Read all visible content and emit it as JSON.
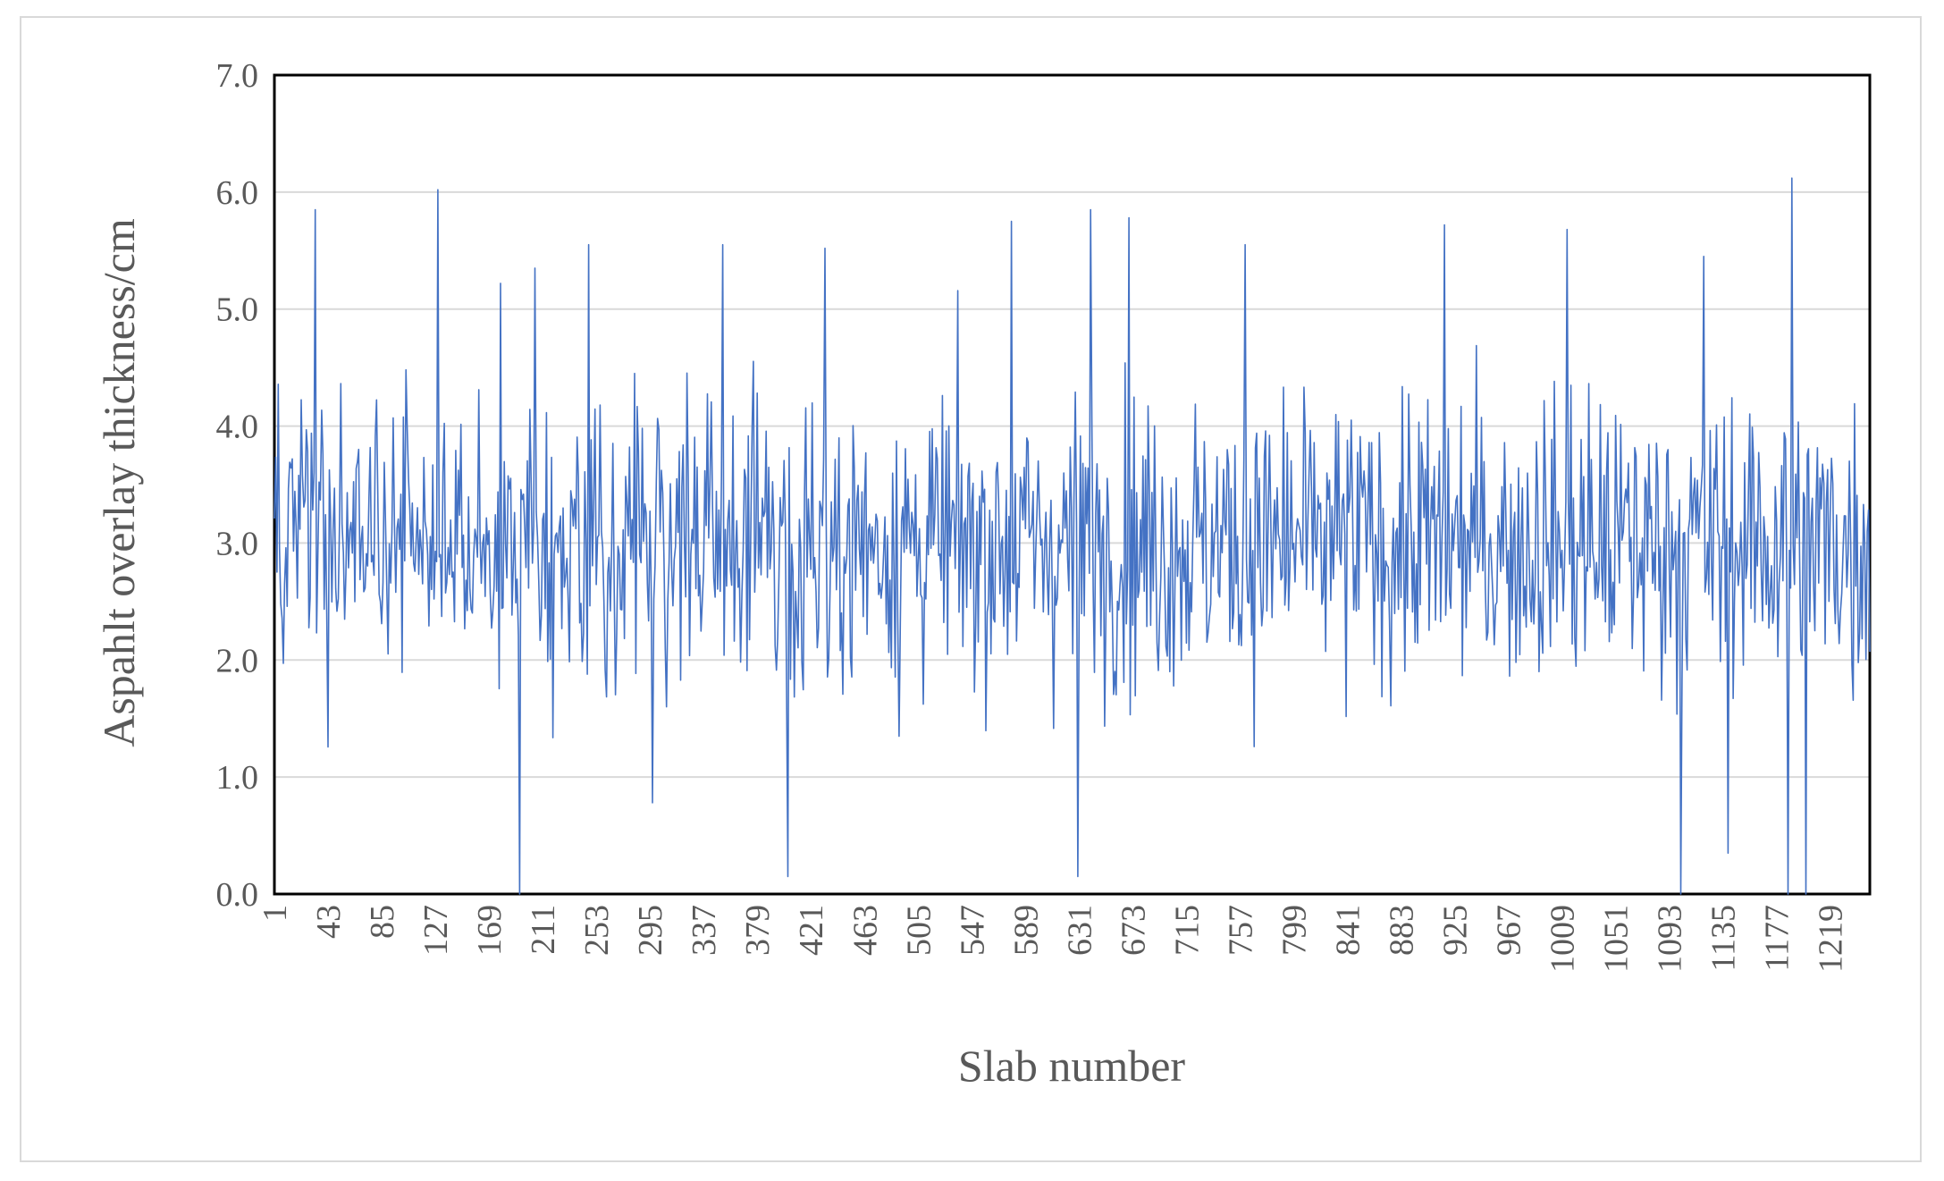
{
  "chart_data": {
    "type": "line",
    "title": "",
    "xlabel": "Slab number",
    "ylabel": "Aspahlt overlay thickness/cm",
    "ylim": [
      0,
      7
    ],
    "xlim": [
      1,
      1250
    ],
    "yticks": [
      "0.0",
      "1.0",
      "2.0",
      "3.0",
      "4.0",
      "5.0",
      "6.0",
      "7.0"
    ],
    "xticks": [
      "1",
      "43",
      "85",
      "127",
      "169",
      "211",
      "253",
      "295",
      "337",
      "379",
      "421",
      "463",
      "505",
      "547",
      "589",
      "631",
      "673",
      "715",
      "757",
      "799",
      "841",
      "883",
      "925",
      "967",
      "1009",
      "1051",
      "1093",
      "1135",
      "1177",
      "1219"
    ],
    "grid": true,
    "legend": "none",
    "series": [
      {
        "name": "Asphalt overlay thickness",
        "color": "#4472c4",
        "count": 1250,
        "mean": 3.0,
        "peaks": [
          {
            "x": 33,
            "y": 5.85
          },
          {
            "x": 129,
            "y": 6.02
          },
          {
            "x": 178,
            "y": 5.22
          },
          {
            "x": 193,
            "y": 0.0
          },
          {
            "x": 205,
            "y": 5.35
          },
          {
            "x": 247,
            "y": 5.55
          },
          {
            "x": 297,
            "y": 0.78
          },
          {
            "x": 352,
            "y": 5.55
          },
          {
            "x": 403,
            "y": 0.15
          },
          {
            "x": 432,
            "y": 5.52
          },
          {
            "x": 578,
            "y": 5.75
          },
          {
            "x": 630,
            "y": 0.15
          },
          {
            "x": 640,
            "y": 5.85
          },
          {
            "x": 670,
            "y": 5.78
          },
          {
            "x": 761,
            "y": 5.55
          },
          {
            "x": 917,
            "y": 5.72
          },
          {
            "x": 1013,
            "y": 5.68
          },
          {
            "x": 1102,
            "y": 0.0
          },
          {
            "x": 1120,
            "y": 5.45
          },
          {
            "x": 1139,
            "y": 0.35
          },
          {
            "x": 1186,
            "y": 0.0
          },
          {
            "x": 1189,
            "y": 6.12
          },
          {
            "x": 1200,
            "y": 0.0
          }
        ]
      }
    ]
  }
}
